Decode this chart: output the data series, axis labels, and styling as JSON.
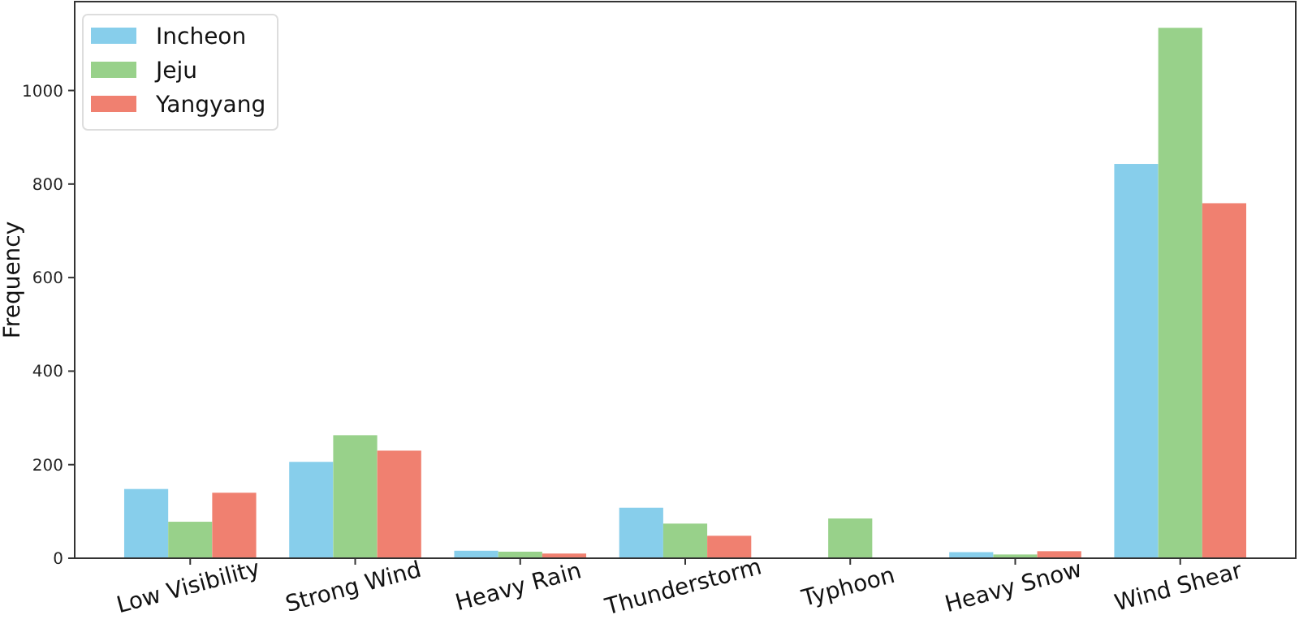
{
  "chart_data": {
    "type": "bar",
    "ylabel": "Frequency",
    "categories": [
      "Low Visibility",
      "Strong Wind",
      "Heavy Rain",
      "Thunderstorm",
      "Typhoon",
      "Heavy Snow",
      "Wind Shear"
    ],
    "series": [
      {
        "name": "Incheon",
        "color": "#87ceeb",
        "values": [
          148,
          206,
          16,
          108,
          0,
          13,
          843
        ]
      },
      {
        "name": "Jeju",
        "color": "#98d18a",
        "values": [
          78,
          263,
          14,
          74,
          85,
          8,
          1134
        ]
      },
      {
        "name": "Yangyang",
        "color": "#f08070",
        "values": [
          140,
          230,
          10,
          48,
          0,
          15,
          759
        ]
      }
    ],
    "ylim": [
      0,
      1190
    ],
    "yticks": [
      0,
      200,
      400,
      600,
      800,
      1000
    ],
    "grid": false,
    "legend": "top left"
  }
}
